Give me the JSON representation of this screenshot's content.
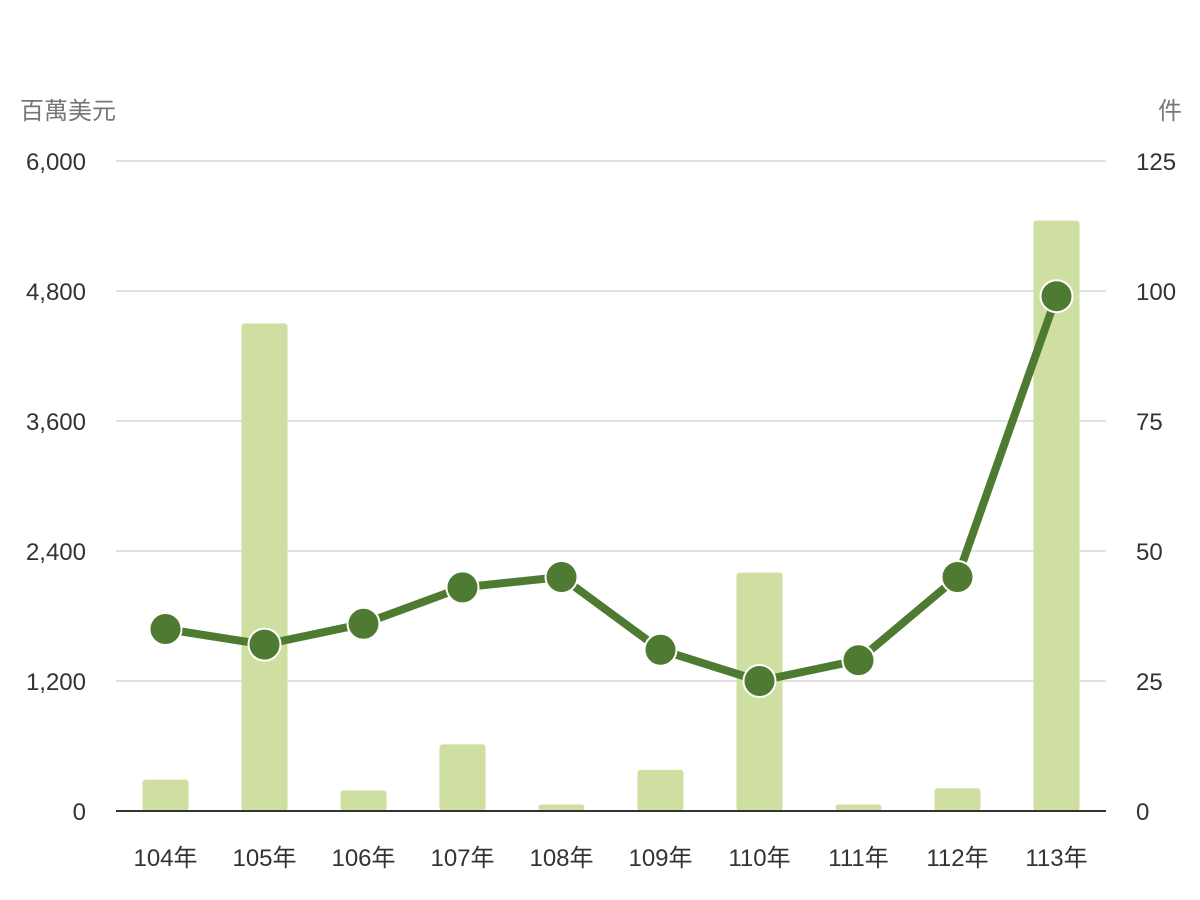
{
  "colors": {
    "bar": "#cfdea1",
    "line": "#4e7a31",
    "marker_stroke": "#ffffff",
    "grid": "#e2e2e2",
    "axis": "#333333"
  },
  "chart_data": {
    "type": "bar+line",
    "title": "",
    "categories": [
      "104年",
      "105年",
      "106年",
      "107年",
      "108年",
      "109年",
      "110年",
      "111年",
      "112年",
      "113年"
    ],
    "y_left": {
      "unit_label": "百萬美元",
      "range": [
        0,
        6000
      ],
      "ticks": [
        0,
        1200,
        2400,
        3600,
        4800,
        6000
      ],
      "tick_labels": [
        "0",
        "1,200",
        "2,400",
        "3,600",
        "4,800",
        "6,000"
      ]
    },
    "y_right": {
      "unit_label": "件",
      "range": [
        0,
        125
      ],
      "ticks": [
        0,
        25,
        50,
        75,
        100,
        125
      ],
      "tick_labels": [
        "0",
        "25",
        "50",
        "75",
        "100",
        "125"
      ]
    },
    "series": [
      {
        "type": "bar",
        "axis": "left",
        "values": [
          290,
          4500,
          190,
          615,
          60,
          380,
          2200,
          60,
          210,
          5450
        ]
      },
      {
        "type": "line",
        "axis": "right",
        "values": [
          35,
          32,
          36,
          43,
          45,
          31,
          25,
          29,
          45,
          99
        ]
      }
    ],
    "grid": true,
    "legend": "none"
  }
}
